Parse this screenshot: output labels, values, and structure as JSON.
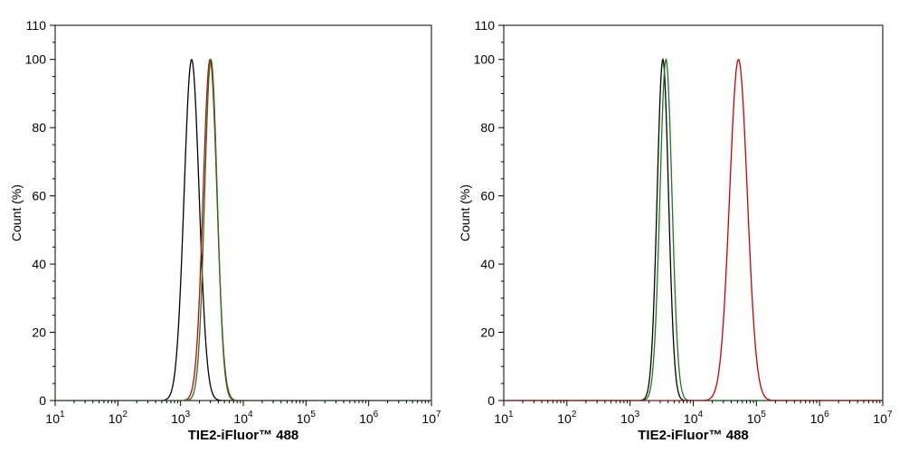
{
  "chart_data": [
    {
      "type": "line",
      "title": "",
      "xlabel": "TIE2-iFluor™ 488",
      "ylabel": "Count  (%)",
      "xscale": "log",
      "xlim": [
        10,
        10000000
      ],
      "ylim": [
        0,
        110
      ],
      "x_ticks": [
        {
          "base": "10",
          "exp": "1"
        },
        {
          "base": "10",
          "exp": "2"
        },
        {
          "base": "10",
          "exp": "3"
        },
        {
          "base": "10",
          "exp": "4"
        },
        {
          "base": "10",
          "exp": "5"
        },
        {
          "base": "10",
          "exp": "6"
        },
        {
          "base": "10",
          "exp": "7"
        }
      ],
      "y_ticks": [
        "0",
        "20",
        "40",
        "60",
        "80",
        "100",
        "110"
      ],
      "grid": false,
      "legend": "none",
      "series": [
        {
          "color": "#000000",
          "peak_x": 1500,
          "width_decades": 0.12,
          "y_max": 100
        },
        {
          "color": "#cc0000",
          "peak_x": 2950,
          "width_decades": 0.11,
          "y_max": 100
        },
        {
          "color": "#1a7a1a",
          "peak_x": 3050,
          "width_decades": 0.1,
          "y_max": 100
        }
      ]
    },
    {
      "type": "line",
      "title": "",
      "xlabel": "TIE2-iFluor™ 488",
      "ylabel": "Count  (%)",
      "xscale": "log",
      "xlim": [
        10,
        10000000
      ],
      "ylim": [
        0,
        110
      ],
      "x_ticks": [
        {
          "base": "10",
          "exp": "1"
        },
        {
          "base": "10",
          "exp": "2"
        },
        {
          "base": "10",
          "exp": "3"
        },
        {
          "base": "10",
          "exp": "4"
        },
        {
          "base": "10",
          "exp": "5"
        },
        {
          "base": "10",
          "exp": "6"
        },
        {
          "base": "10",
          "exp": "7"
        }
      ],
      "y_ticks": [
        "0",
        "20",
        "40",
        "60",
        "80",
        "100",
        "110"
      ],
      "grid": false,
      "legend": "none",
      "series": [
        {
          "color": "#000000",
          "peak_x": 3300,
          "width_decades": 0.09,
          "y_max": 100
        },
        {
          "color": "#1a7a1a",
          "peak_x": 3700,
          "width_decades": 0.095,
          "y_max": 100
        },
        {
          "color": "#cc0000",
          "peak_x": 52000,
          "width_decades": 0.14,
          "y_max": 100
        }
      ]
    }
  ]
}
